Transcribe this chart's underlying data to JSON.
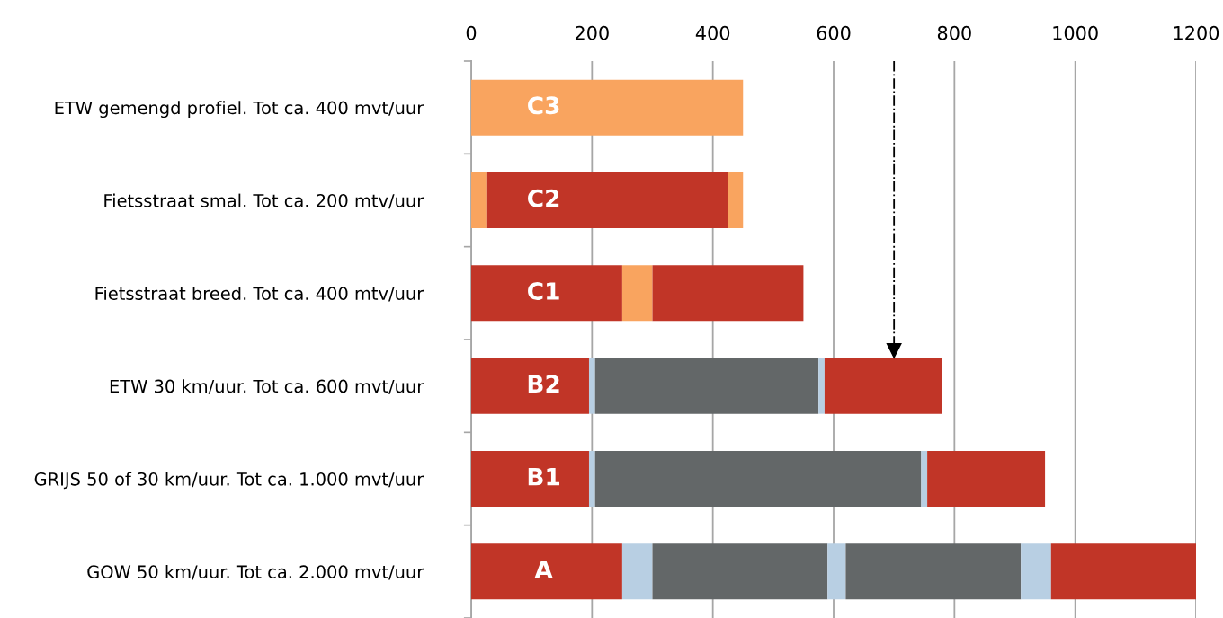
{
  "chart_data": {
    "type": "bar",
    "orientation": "horizontal",
    "stacked": true,
    "categories": [
      "ETW gemengd profiel. Tot ca. 400 mvt/uur",
      "Fietsstraat smal. Tot ca. 200 mtv/uur",
      "Fietsstraat breed. Tot ca. 400 mtv/uur",
      "ETW 30 km/uur. Tot ca. 600 mvt/uur",
      "GRIJS 50 of 30 km/uur. Tot ca. 1.000 mvt/uur",
      "GOW 50 km/uur. Tot ca. 2.000 mvt/uur"
    ],
    "series": [
      {
        "values": [
          450,
          25,
          250,
          195,
          195,
          250
        ],
        "colors": [
          "#f9a45f",
          "#f9a45f",
          "#c13527",
          "#c13527",
          "#c13527",
          "#c13527"
        ]
      },
      {
        "values": [
          null,
          400,
          50,
          10,
          10,
          50
        ],
        "colors": [
          "#f9a45f",
          "#c13527",
          "#f9a45f",
          "#b8cfe3",
          "#b8cfe3",
          "#b8cfe3"
        ]
      },
      {
        "values": [
          null,
          25,
          250,
          370,
          540,
          290
        ],
        "colors": [
          "#f9a45f",
          "#f9a45f",
          "#c13527",
          "#636768",
          "#636768",
          "#636768"
        ]
      },
      {
        "values": [
          null,
          null,
          null,
          10,
          10,
          30
        ],
        "colors": [
          "#b8cfe3",
          "#b8cfe3",
          "#b8cfe3",
          "#b8cfe3",
          "#b8cfe3",
          "#b8cfe3"
        ]
      },
      {
        "values": [
          null,
          null,
          null,
          195,
          195,
          290
        ],
        "colors": [
          "#c13527",
          "#c13527",
          "#c13527",
          "#c13527",
          "#c13527",
          "#636768"
        ]
      },
      {
        "values": [
          null,
          null,
          null,
          null,
          null,
          50
        ],
        "colors": [
          "#b8cfe3",
          "#b8cfe3",
          "#b8cfe3",
          "#b8cfe3",
          "#b8cfe3",
          "#b8cfe3"
        ]
      },
      {
        "values": [
          null,
          null,
          null,
          null,
          null,
          240
        ],
        "colors": [
          "#c13527",
          "#c13527",
          "#c13527",
          "#c13527",
          "#c13527",
          "#c13527"
        ]
      }
    ],
    "xlim": [
      0,
      1200
    ],
    "xticks": [
      0,
      200,
      400,
      600,
      800,
      1000,
      1200
    ],
    "grid": "x",
    "ref_lines": [
      {
        "axis": "x",
        "value": 700,
        "line_style": "dashdot",
        "color": "#000000"
      }
    ],
    "annotations": [
      "C3",
      "C2",
      "C1",
      "B2",
      "B1",
      "A"
    ]
  }
}
